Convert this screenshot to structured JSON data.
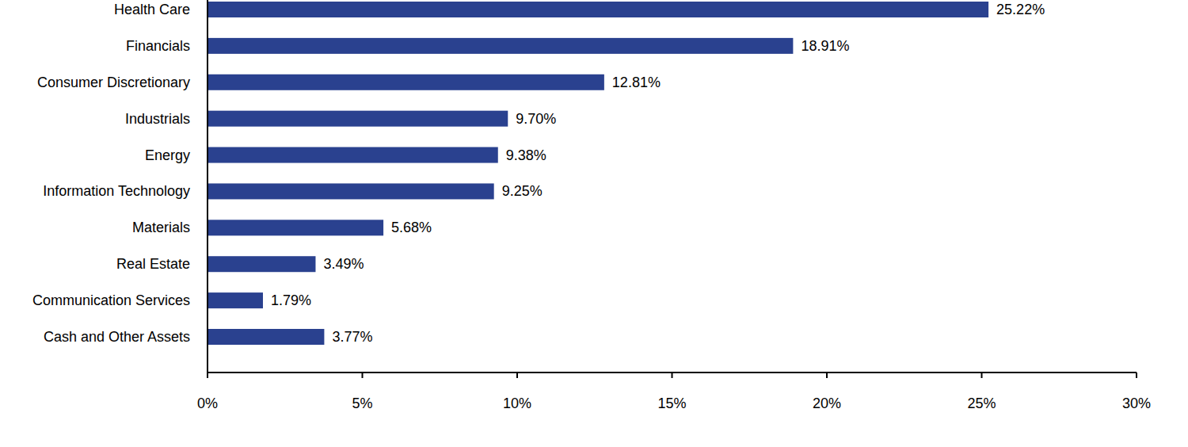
{
  "chart_data": {
    "type": "bar",
    "orientation": "horizontal",
    "categories": [
      "Health Care",
      "Financials",
      "Consumer Discretionary",
      "Industrials",
      "Energy",
      "Information Technology",
      "Materials",
      "Real Estate",
      "Communication Services",
      "Cash and Other Assets"
    ],
    "values": [
      25.22,
      18.91,
      12.81,
      9.7,
      9.38,
      9.25,
      5.68,
      3.49,
      1.79,
      3.77
    ],
    "value_labels": [
      "25.22%",
      "18.91%",
      "12.81%",
      "9.70%",
      "9.38%",
      "9.25%",
      "5.68%",
      "3.49%",
      "1.79%",
      "3.77%"
    ],
    "data_labels": true,
    "color": "#2a418f",
    "xlim": [
      0,
      30
    ],
    "xticks": [
      {
        "value": 0,
        "label": "0%"
      },
      {
        "value": 5,
        "label": "5%"
      },
      {
        "value": 10,
        "label": "10%"
      },
      {
        "value": 15,
        "label": "15%"
      },
      {
        "value": 20,
        "label": "20%"
      },
      {
        "value": 25,
        "label": "25%"
      },
      {
        "value": 30,
        "label": "30%"
      }
    ],
    "grid": false
  }
}
